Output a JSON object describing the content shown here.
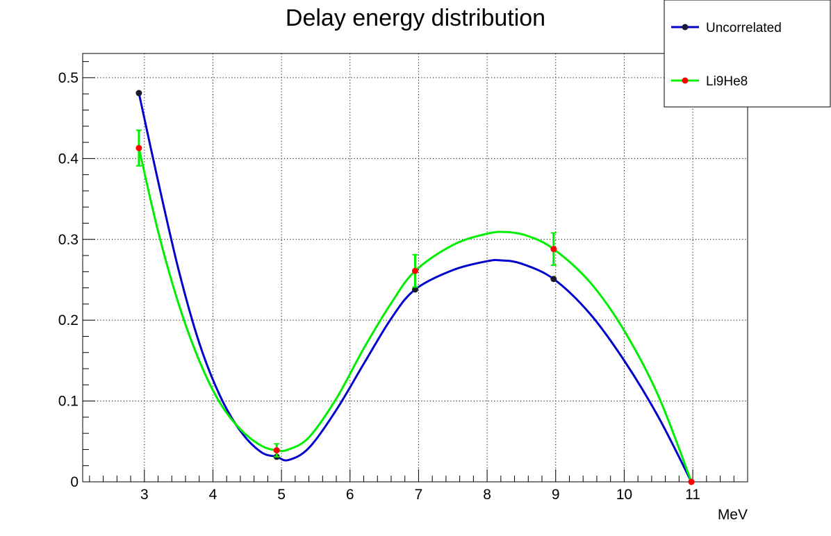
{
  "chart_data": {
    "type": "line",
    "title": "Delay energy distribution",
    "xlabel": "MeV",
    "ylabel": "",
    "xlim": [
      2.1,
      11.8
    ],
    "ylim": [
      0,
      0.53
    ],
    "x_ticks": [
      3,
      4,
      5,
      6,
      7,
      8,
      9,
      10,
      11
    ],
    "y_ticks": [
      0,
      0.1,
      0.2,
      0.3,
      0.4,
      0.5
    ],
    "x_tick_labels": [
      "3",
      "4",
      "5",
      "6",
      "7",
      "8",
      "9",
      "10",
      "11"
    ],
    "y_tick_labels": [
      "0",
      "0.1",
      "0.2",
      "0.3",
      "0.4",
      "0.5"
    ],
    "grid": true,
    "legend_position": "top-right",
    "series": [
      {
        "name": "Uncorrelated",
        "line_color": "#0000cc",
        "marker_color": "#1a1a2e",
        "x": [
          2.92,
          4.93,
          6.95,
          8.97,
          10.98
        ],
        "y": [
          0.481,
          0.031,
          0.238,
          0.251,
          0.0
        ],
        "y_err": [
          0,
          0,
          0,
          0,
          0
        ],
        "curve_x": [
          2.92,
          3.2,
          3.5,
          3.8,
          4.1,
          4.4,
          4.7,
          4.93,
          5.1,
          5.4,
          5.8,
          6.2,
          6.6,
          6.95,
          7.5,
          8.0,
          8.2,
          8.5,
          8.97,
          9.5,
          10.0,
          10.5,
          10.98
        ],
        "curve_y": [
          0.481,
          0.372,
          0.262,
          0.172,
          0.107,
          0.063,
          0.037,
          0.031,
          0.027,
          0.042,
          0.089,
          0.146,
          0.202,
          0.238,
          0.262,
          0.273,
          0.274,
          0.27,
          0.251,
          0.208,
          0.15,
          0.08,
          0.0
        ]
      },
      {
        "name": "Li9He8",
        "line_color": "#00ee00",
        "marker_color": "#ff0000",
        "x": [
          2.92,
          4.93,
          6.95,
          8.97,
          10.98
        ],
        "y": [
          0.413,
          0.039,
          0.261,
          0.288,
          0.0
        ],
        "y_err": [
          0.022,
          0.008,
          0.02,
          0.02,
          0.0
        ],
        "curve_x": [
          2.92,
          3.2,
          3.5,
          3.8,
          4.1,
          4.4,
          4.7,
          4.93,
          5.1,
          5.4,
          5.8,
          6.2,
          6.6,
          6.95,
          7.5,
          8.0,
          8.3,
          8.6,
          8.97,
          9.5,
          10.0,
          10.5,
          10.98
        ],
        "curve_y": [
          0.413,
          0.31,
          0.22,
          0.15,
          0.098,
          0.065,
          0.045,
          0.039,
          0.04,
          0.055,
          0.103,
          0.165,
          0.221,
          0.261,
          0.293,
          0.307,
          0.309,
          0.304,
          0.288,
          0.247,
          0.187,
          0.106,
          0.0
        ]
      }
    ]
  }
}
